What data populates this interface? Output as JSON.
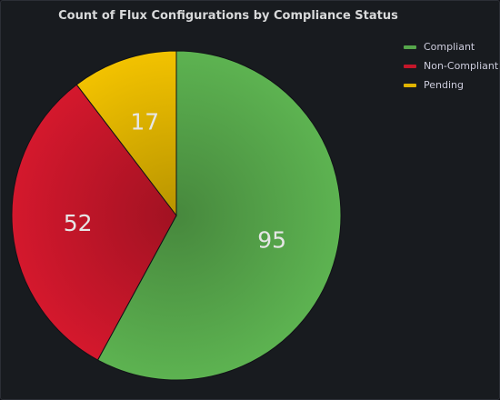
{
  "panel": {
    "title": "Count of Flux Configurations by Compliance Status"
  },
  "legend": {
    "items": [
      {
        "label": "Compliant",
        "color": "#56a64b"
      },
      {
        "label": "Non-Compliant",
        "color": "#c4162a"
      },
      {
        "label": "Pending",
        "color": "#e0b400"
      }
    ]
  },
  "chart_data": {
    "type": "pie",
    "title": "Count of Flux Configurations by Compliance Status",
    "legend_position": "right",
    "series": [
      {
        "name": "Compliant",
        "value": 95,
        "color": "#56a64b"
      },
      {
        "name": "Non-Compliant",
        "value": 52,
        "color": "#c4162a"
      },
      {
        "name": "Pending",
        "value": 17,
        "color": "#e0b400"
      }
    ]
  }
}
